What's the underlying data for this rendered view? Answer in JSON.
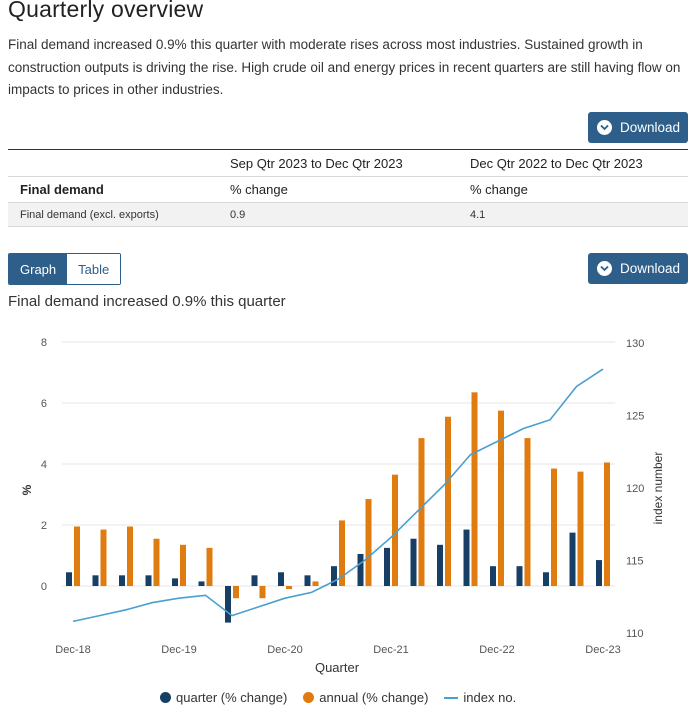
{
  "page": {
    "title": "Quarterly overview",
    "intro": "Final demand increased 0.9% this quarter with moderate rises across most industries. Sustained growth in construction outputs is driving the rise. High crude oil and energy prices in recent quarters are still having flow on impacts to prices in other industries.",
    "download_label": "Download"
  },
  "summary_table": {
    "period_headers": [
      "Sep Qtr 2023 to Dec Qtr 2023",
      "Dec Qtr 2022 to Dec Qtr 2023"
    ],
    "row_header": "Final demand",
    "unit_headers": [
      "% change",
      "% change"
    ],
    "rows": [
      {
        "label": "Final demand (excl. exports)",
        "values": [
          "0.9",
          "4.1"
        ]
      }
    ]
  },
  "view_toggle": {
    "options": [
      "Graph",
      "Table"
    ],
    "selected": "Graph"
  },
  "chart_heading": "Final demand increased 0.9% this quarter",
  "colors": {
    "accent": "#2d5f8a",
    "quarter": "#173f66",
    "annual": "#e07b10",
    "index": "#4a9fd0"
  },
  "chart_data": {
    "type": "bar",
    "categories": [
      "Dec-18",
      "Mar-19",
      "Jun-19",
      "Sep-19",
      "Dec-19",
      "Mar-20",
      "Jun-20",
      "Sep-20",
      "Dec-20",
      "Mar-21",
      "Jun-21",
      "Sep-21",
      "Dec-21",
      "Mar-22",
      "Jun-22",
      "Sep-22",
      "Dec-22",
      "Mar-23",
      "Jun-23",
      "Sep-23",
      "Dec-23"
    ],
    "x_tick_labels": [
      "Dec-18",
      "Dec-19",
      "Dec-20",
      "Dec-21",
      "Dec-22",
      "Dec-23"
    ],
    "xlabel": "Quarter",
    "ylabel": "%",
    "y2label": "index number",
    "ylim": [
      -1.5,
      8
    ],
    "yticks": [
      0,
      2,
      4,
      6,
      8
    ],
    "y2lim": [
      110,
      130
    ],
    "y2ticks": [
      110,
      115,
      120,
      125,
      130
    ],
    "series": [
      {
        "name": "quarter (% change)",
        "type": "bar",
        "axis": "left",
        "values": [
          0.45,
          0.35,
          0.35,
          0.35,
          0.25,
          0.15,
          -1.2,
          0.35,
          0.45,
          0.35,
          0.65,
          1.05,
          1.25,
          1.55,
          1.35,
          1.85,
          0.65,
          0.65,
          0.45,
          1.75,
          0.85
        ]
      },
      {
        "name": "annual (% change)",
        "type": "bar",
        "axis": "left",
        "values": [
          1.95,
          1.85,
          1.95,
          1.55,
          1.35,
          1.25,
          -0.4,
          -0.4,
          -0.1,
          0.15,
          2.15,
          2.85,
          3.65,
          4.85,
          5.55,
          6.35,
          5.75,
          4.85,
          3.85,
          3.75,
          4.05
        ]
      },
      {
        "name": "index no.",
        "type": "line",
        "axis": "right",
        "values": [
          110.8,
          111.2,
          111.6,
          112.1,
          112.4,
          112.6,
          111.2,
          111.8,
          112.4,
          112.8,
          113.7,
          115.0,
          116.6,
          118.4,
          120.2,
          122.3,
          123.2,
          124.1,
          124.7,
          127.0,
          128.2
        ]
      }
    ]
  }
}
